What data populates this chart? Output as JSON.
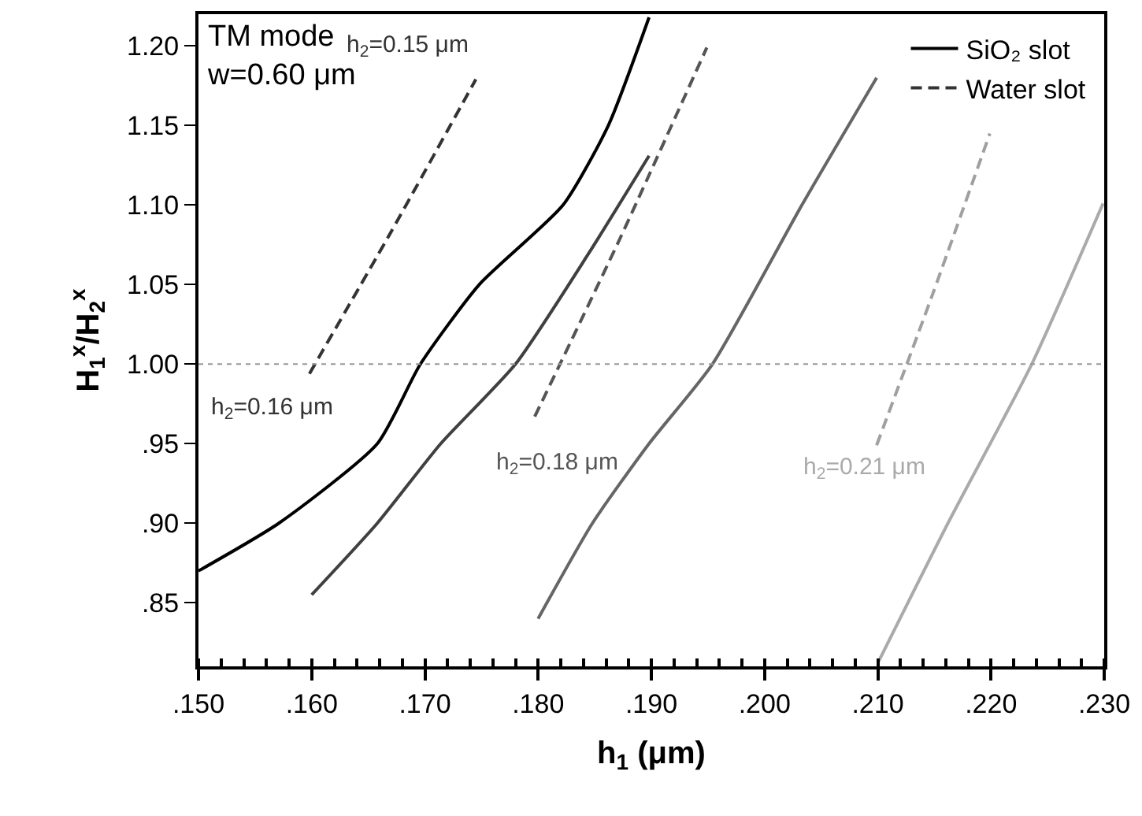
{
  "chart_data": {
    "type": "line",
    "xlabel": "h$_{1}$ (μm)",
    "ylabel": "H$_{1}$$^{x}$/H$_{2}$$^{x}$",
    "xlim": [
      0.15,
      0.23
    ],
    "ylim": [
      0.81,
      1.22
    ],
    "xticks": [
      {
        "value": 0.15,
        "label": ".150"
      },
      {
        "value": 0.16,
        "label": ".160"
      },
      {
        "value": 0.17,
        "label": ".170"
      },
      {
        "value": 0.18,
        "label": ".180"
      },
      {
        "value": 0.19,
        "label": ".190"
      },
      {
        "value": 0.2,
        "label": ".200"
      },
      {
        "value": 0.21,
        "label": ".210"
      },
      {
        "value": 0.22,
        "label": ".220"
      },
      {
        "value": 0.23,
        "label": ".230"
      }
    ],
    "yticks": [
      {
        "value": 0.85,
        "label": ".85"
      },
      {
        "value": 0.9,
        "label": ".90"
      },
      {
        "value": 0.95,
        "label": ".95"
      },
      {
        "value": 1.0,
        "label": "1.00"
      },
      {
        "value": 1.05,
        "label": "1.05"
      },
      {
        "value": 1.1,
        "label": "1.10"
      },
      {
        "value": 1.15,
        "label": "1.15"
      },
      {
        "value": 1.2,
        "label": "1.20"
      }
    ],
    "grid": false,
    "legend": "top right",
    "marker": "none",
    "series": [
      {
        "name": "SiO₂ slot",
        "color": "#000000",
        "line_style": "solid",
        "x": [
          0.15,
          0.1571,
          0.1658,
          0.1696,
          0.1748,
          0.1822,
          0.1862,
          0.1898
        ],
        "values": [
          0.87,
          0.9,
          0.95,
          1.0,
          1.05,
          1.1,
          1.15,
          1.218
        ]
      },
      {
        "name": "Water slot",
        "color": "#333333",
        "line_style": "dashed",
        "x": [
          0.1598,
          0.167,
          0.1745
        ],
        "values": [
          0.994,
          1.083,
          1.179
        ]
      },
      {
        "color": "#404040",
        "line_style": "solid",
        "x": [
          0.16,
          0.1658,
          0.1714,
          0.178,
          0.1845,
          0.1898
        ],
        "values": [
          0.855,
          0.9,
          0.95,
          1.0,
          1.07,
          1.131
        ]
      },
      {
        "color": "#555555",
        "line_style": "dashed",
        "x": [
          0.1797,
          0.1873,
          0.1949
        ],
        "values": [
          0.967,
          1.08,
          1.199
        ]
      },
      {
        "color": "#666666",
        "line_style": "solid",
        "x": [
          0.18,
          0.1848,
          0.1898,
          0.1954,
          0.2033,
          0.2099
        ],
        "values": [
          0.84,
          0.9,
          0.95,
          1.0,
          1.1,
          1.18
        ]
      },
      {
        "color": "#a0a0a0",
        "line_style": "dashed",
        "x": [
          0.2099,
          0.2149,
          0.2199
        ],
        "values": [
          0.949,
          1.045,
          1.145
        ]
      },
      {
        "color": "#aaaaaa",
        "line_style": "solid",
        "x": [
          0.21,
          0.2162,
          0.2236,
          0.2299
        ],
        "values": [
          0.812,
          0.9,
          1.0,
          1.101
        ]
      }
    ],
    "ref_lines": [
      {
        "axis": "y",
        "value": 1.0,
        "color": "#999999",
        "line_style": "dotted"
      }
    ],
    "annotations": [
      "TM mode\nw=0.60 μm",
      "h$_{2}$=0.15 μm",
      "h$_{2}$=0.16 μm",
      "h$_{2}$=0.18 μm",
      "h$_{2}$=0.21 μm"
    ]
  }
}
